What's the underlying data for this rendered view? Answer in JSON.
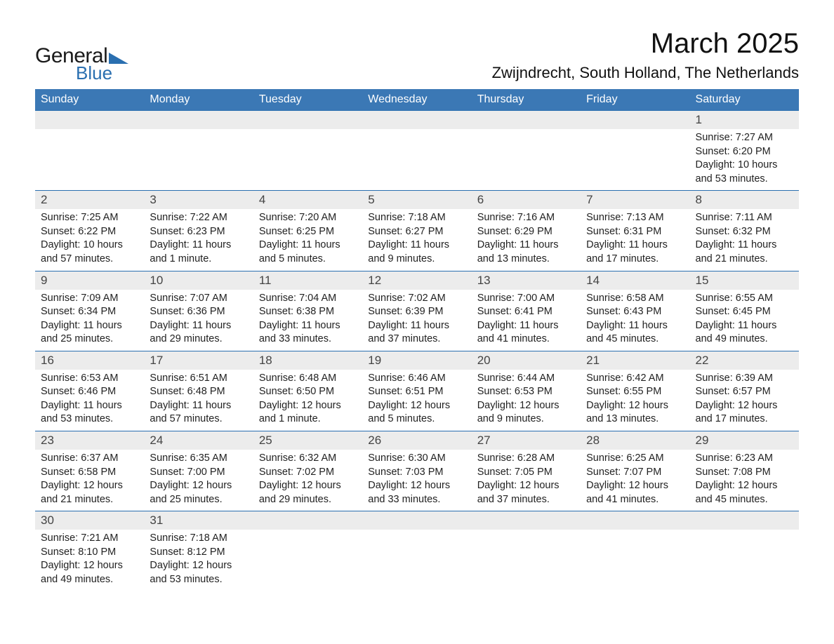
{
  "logo": {
    "text1": "General",
    "text2": "Blue",
    "tri_color": "#2a6fb0"
  },
  "title": "March 2025",
  "location": "Zwijndrecht, South Holland, The Netherlands",
  "colors": {
    "header_bg": "#3b78b5",
    "header_fg": "#ffffff",
    "daynum_bg": "#ececec",
    "row_divider": "#2a6fb0",
    "text": "#222222",
    "background": "#ffffff"
  },
  "weekdays": [
    "Sunday",
    "Monday",
    "Tuesday",
    "Wednesday",
    "Thursday",
    "Friday",
    "Saturday"
  ],
  "weeks": [
    [
      null,
      null,
      null,
      null,
      null,
      null,
      {
        "n": "1",
        "sr": "Sunrise: 7:27 AM",
        "ss": "Sunset: 6:20 PM",
        "d1": "Daylight: 10 hours",
        "d2": "and 53 minutes."
      }
    ],
    [
      {
        "n": "2",
        "sr": "Sunrise: 7:25 AM",
        "ss": "Sunset: 6:22 PM",
        "d1": "Daylight: 10 hours",
        "d2": "and 57 minutes."
      },
      {
        "n": "3",
        "sr": "Sunrise: 7:22 AM",
        "ss": "Sunset: 6:23 PM",
        "d1": "Daylight: 11 hours",
        "d2": "and 1 minute."
      },
      {
        "n": "4",
        "sr": "Sunrise: 7:20 AM",
        "ss": "Sunset: 6:25 PM",
        "d1": "Daylight: 11 hours",
        "d2": "and 5 minutes."
      },
      {
        "n": "5",
        "sr": "Sunrise: 7:18 AM",
        "ss": "Sunset: 6:27 PM",
        "d1": "Daylight: 11 hours",
        "d2": "and 9 minutes."
      },
      {
        "n": "6",
        "sr": "Sunrise: 7:16 AM",
        "ss": "Sunset: 6:29 PM",
        "d1": "Daylight: 11 hours",
        "d2": "and 13 minutes."
      },
      {
        "n": "7",
        "sr": "Sunrise: 7:13 AM",
        "ss": "Sunset: 6:31 PM",
        "d1": "Daylight: 11 hours",
        "d2": "and 17 minutes."
      },
      {
        "n": "8",
        "sr": "Sunrise: 7:11 AM",
        "ss": "Sunset: 6:32 PM",
        "d1": "Daylight: 11 hours",
        "d2": "and 21 minutes."
      }
    ],
    [
      {
        "n": "9",
        "sr": "Sunrise: 7:09 AM",
        "ss": "Sunset: 6:34 PM",
        "d1": "Daylight: 11 hours",
        "d2": "and 25 minutes."
      },
      {
        "n": "10",
        "sr": "Sunrise: 7:07 AM",
        "ss": "Sunset: 6:36 PM",
        "d1": "Daylight: 11 hours",
        "d2": "and 29 minutes."
      },
      {
        "n": "11",
        "sr": "Sunrise: 7:04 AM",
        "ss": "Sunset: 6:38 PM",
        "d1": "Daylight: 11 hours",
        "d2": "and 33 minutes."
      },
      {
        "n": "12",
        "sr": "Sunrise: 7:02 AM",
        "ss": "Sunset: 6:39 PM",
        "d1": "Daylight: 11 hours",
        "d2": "and 37 minutes."
      },
      {
        "n": "13",
        "sr": "Sunrise: 7:00 AM",
        "ss": "Sunset: 6:41 PM",
        "d1": "Daylight: 11 hours",
        "d2": "and 41 minutes."
      },
      {
        "n": "14",
        "sr": "Sunrise: 6:58 AM",
        "ss": "Sunset: 6:43 PM",
        "d1": "Daylight: 11 hours",
        "d2": "and 45 minutes."
      },
      {
        "n": "15",
        "sr": "Sunrise: 6:55 AM",
        "ss": "Sunset: 6:45 PM",
        "d1": "Daylight: 11 hours",
        "d2": "and 49 minutes."
      }
    ],
    [
      {
        "n": "16",
        "sr": "Sunrise: 6:53 AM",
        "ss": "Sunset: 6:46 PM",
        "d1": "Daylight: 11 hours",
        "d2": "and 53 minutes."
      },
      {
        "n": "17",
        "sr": "Sunrise: 6:51 AM",
        "ss": "Sunset: 6:48 PM",
        "d1": "Daylight: 11 hours",
        "d2": "and 57 minutes."
      },
      {
        "n": "18",
        "sr": "Sunrise: 6:48 AM",
        "ss": "Sunset: 6:50 PM",
        "d1": "Daylight: 12 hours",
        "d2": "and 1 minute."
      },
      {
        "n": "19",
        "sr": "Sunrise: 6:46 AM",
        "ss": "Sunset: 6:51 PM",
        "d1": "Daylight: 12 hours",
        "d2": "and 5 minutes."
      },
      {
        "n": "20",
        "sr": "Sunrise: 6:44 AM",
        "ss": "Sunset: 6:53 PM",
        "d1": "Daylight: 12 hours",
        "d2": "and 9 minutes."
      },
      {
        "n": "21",
        "sr": "Sunrise: 6:42 AM",
        "ss": "Sunset: 6:55 PM",
        "d1": "Daylight: 12 hours",
        "d2": "and 13 minutes."
      },
      {
        "n": "22",
        "sr": "Sunrise: 6:39 AM",
        "ss": "Sunset: 6:57 PM",
        "d1": "Daylight: 12 hours",
        "d2": "and 17 minutes."
      }
    ],
    [
      {
        "n": "23",
        "sr": "Sunrise: 6:37 AM",
        "ss": "Sunset: 6:58 PM",
        "d1": "Daylight: 12 hours",
        "d2": "and 21 minutes."
      },
      {
        "n": "24",
        "sr": "Sunrise: 6:35 AM",
        "ss": "Sunset: 7:00 PM",
        "d1": "Daylight: 12 hours",
        "d2": "and 25 minutes."
      },
      {
        "n": "25",
        "sr": "Sunrise: 6:32 AM",
        "ss": "Sunset: 7:02 PM",
        "d1": "Daylight: 12 hours",
        "d2": "and 29 minutes."
      },
      {
        "n": "26",
        "sr": "Sunrise: 6:30 AM",
        "ss": "Sunset: 7:03 PM",
        "d1": "Daylight: 12 hours",
        "d2": "and 33 minutes."
      },
      {
        "n": "27",
        "sr": "Sunrise: 6:28 AM",
        "ss": "Sunset: 7:05 PM",
        "d1": "Daylight: 12 hours",
        "d2": "and 37 minutes."
      },
      {
        "n": "28",
        "sr": "Sunrise: 6:25 AM",
        "ss": "Sunset: 7:07 PM",
        "d1": "Daylight: 12 hours",
        "d2": "and 41 minutes."
      },
      {
        "n": "29",
        "sr": "Sunrise: 6:23 AM",
        "ss": "Sunset: 7:08 PM",
        "d1": "Daylight: 12 hours",
        "d2": "and 45 minutes."
      }
    ],
    [
      {
        "n": "30",
        "sr": "Sunrise: 7:21 AM",
        "ss": "Sunset: 8:10 PM",
        "d1": "Daylight: 12 hours",
        "d2": "and 49 minutes."
      },
      {
        "n": "31",
        "sr": "Sunrise: 7:18 AM",
        "ss": "Sunset: 8:12 PM",
        "d1": "Daylight: 12 hours",
        "d2": "and 53 minutes."
      },
      null,
      null,
      null,
      null,
      null
    ]
  ]
}
